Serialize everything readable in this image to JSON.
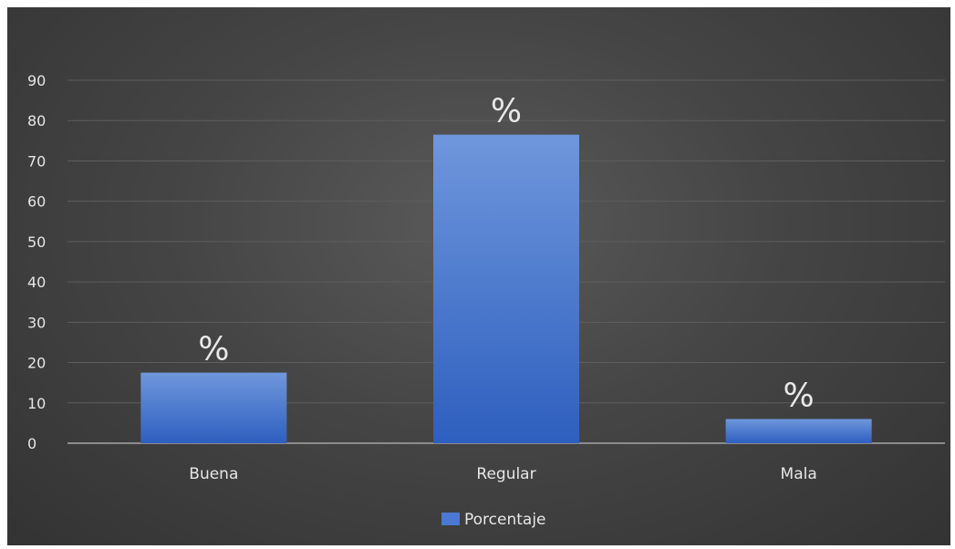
{
  "chart_data": {
    "type": "bar",
    "title": "",
    "xlabel": "",
    "ylabel": "",
    "categories": [
      "Buena",
      "Regular",
      "Mala"
    ],
    "series": [
      {
        "name": "Porcentaje",
        "values": [
          17.5,
          76.5,
          6
        ],
        "data_labels": [
          "%",
          "%",
          "%"
        ]
      }
    ],
    "ylim": [
      0,
      90
    ],
    "yticks": [
      "0",
      "10",
      "20",
      "30",
      "40",
      "50",
      "60",
      "70",
      "80",
      "90"
    ],
    "grid": true,
    "legend_position": "bottom",
    "colors": {
      "bar_top": "#6f97dc",
      "bar_bottom": "#2e5fbf",
      "legend_swatch": "#4a78d4",
      "gridline": "#5e5e5e",
      "axis": "#8c8c8c"
    }
  }
}
